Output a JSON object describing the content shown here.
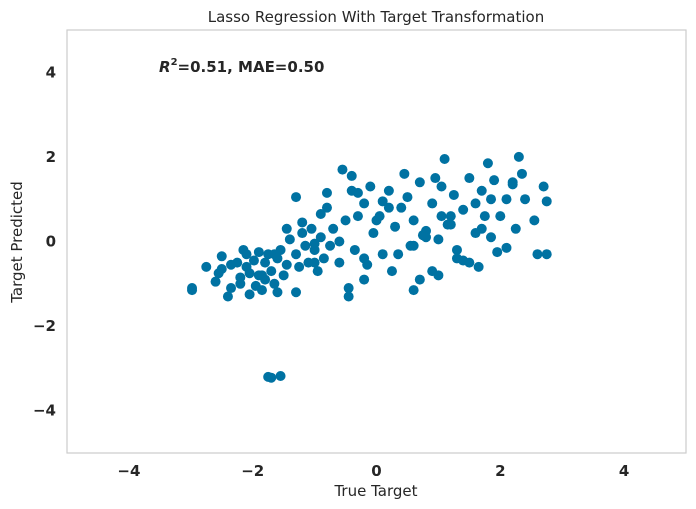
{
  "chart_data": {
    "type": "scatter",
    "title": "Lasso Regression With Target Transformation",
    "xlabel": "True Target",
    "ylabel": "Target Predicted",
    "xlim": [
      -5,
      5
    ],
    "ylim": [
      -5,
      5
    ],
    "xticks": [
      -4,
      -2,
      0,
      2,
      4
    ],
    "yticks": [
      -4,
      -2,
      0,
      2,
      4
    ],
    "grid": false,
    "annotation": {
      "r2_symbol": "R",
      "r2_exp": "2",
      "text": "=0.51, MAE=0.50"
    },
    "marker_color": "#0072a2",
    "frame_color": "#cccccc",
    "series": [
      {
        "x": [
          -2.98,
          -2.98,
          -2.75,
          -2.6,
          -2.55,
          -2.5,
          -2.5,
          -2.4,
          -2.35,
          -2.35,
          -2.2,
          -2.2,
          -2.15,
          -2.1,
          -2.05,
          -2.05,
          -1.98,
          -1.95,
          -1.9,
          -1.9,
          -1.85,
          -1.8,
          -1.8,
          -1.75,
          -1.7,
          -1.65,
          -1.6,
          -1.6,
          -1.55,
          -1.5,
          -1.45,
          -1.4,
          -1.3,
          -1.3,
          -1.25,
          -1.2,
          -1.15,
          -1.1,
          -1.05,
          -1.0,
          -0.95,
          -0.9,
          -0.85,
          -0.8,
          -0.75,
          -0.7,
          -0.6,
          -0.5,
          -0.4,
          -0.35,
          -0.3,
          -0.2,
          -0.2,
          -0.1,
          -0.05,
          0.05,
          0.1,
          0.2,
          0.3,
          0.4,
          0.5,
          0.55,
          0.6,
          0.7,
          0.8,
          0.9,
          0.95,
          1.0,
          1.05,
          1.1,
          1.2,
          1.25,
          1.3,
          1.4,
          1.5,
          1.6,
          1.65,
          1.7,
          1.75,
          1.8,
          1.85,
          1.9,
          2.0,
          2.1,
          2.2,
          2.25,
          2.3,
          2.4,
          2.55,
          2.6,
          2.7,
          2.75,
          2.75,
          -1.75,
          -1.7,
          -1.55,
          -0.45,
          -0.45,
          -0.2,
          0.6,
          0.7,
          1.0,
          1.3,
          1.4,
          1.95,
          2.1,
          2.2,
          -1.3,
          -0.8,
          -0.4,
          -0.3,
          0.1,
          -0.55,
          -1.0,
          0.45,
          1.6,
          -1.65,
          -1.2,
          0.25,
          0.9,
          1.5,
          -0.9,
          0.0,
          0.35,
          0.75,
          1.15,
          -2.25,
          -1.85,
          -0.6,
          0.6,
          1.2,
          1.85,
          2.35,
          -1.45,
          -0.15,
          0.8,
          1.7,
          -2.1,
          -1.0,
          0.2,
          1.05
        ],
        "y": [
          -1.1,
          -1.15,
          -0.6,
          -0.95,
          -0.75,
          -0.35,
          -0.65,
          -1.3,
          -1.1,
          -0.55,
          -0.85,
          -1.0,
          -0.2,
          -0.6,
          -1.25,
          -0.75,
          -0.45,
          -1.05,
          -0.25,
          -0.8,
          -1.15,
          -0.5,
          -0.9,
          -0.3,
          -0.7,
          -1.0,
          -0.4,
          -1.2,
          -0.2,
          -0.8,
          -0.55,
          0.05,
          -0.3,
          -1.2,
          -0.6,
          0.45,
          -0.1,
          -0.5,
          0.3,
          -0.2,
          -0.7,
          0.1,
          -0.4,
          0.8,
          -0.1,
          0.3,
          -0.5,
          0.5,
          1.55,
          -0.2,
          0.6,
          0.9,
          -0.4,
          1.3,
          0.2,
          0.6,
          -0.3,
          1.2,
          0.35,
          0.8,
          1.05,
          -0.1,
          0.5,
          1.4,
          0.25,
          0.9,
          1.5,
          0.05,
          0.6,
          1.95,
          0.4,
          1.1,
          -0.2,
          0.75,
          1.5,
          0.2,
          -0.6,
          1.2,
          0.6,
          1.85,
          0.1,
          1.45,
          0.6,
          1.0,
          1.4,
          0.3,
          2.0,
          1.0,
          0.5,
          -0.3,
          1.3,
          0.95,
          -0.3,
          -3.2,
          -3.22,
          -3.18,
          -1.3,
          -1.1,
          -0.9,
          -1.15,
          -0.9,
          -0.8,
          -0.4,
          -0.45,
          -0.25,
          -0.15,
          1.35,
          1.05,
          1.15,
          1.2,
          1.15,
          0.95,
          1.7,
          -0.05,
          1.6,
          0.9,
          -0.3,
          0.2,
          -0.7,
          -0.7,
          -0.5,
          0.65,
          0.5,
          -0.3,
          0.15,
          0.4,
          -0.5,
          -0.8,
          0.0,
          -0.1,
          0.6,
          1.0,
          1.6,
          0.3,
          -0.55,
          0.1,
          0.3,
          -0.3,
          -0.5,
          0.8,
          1.3
        ]
      }
    ]
  }
}
